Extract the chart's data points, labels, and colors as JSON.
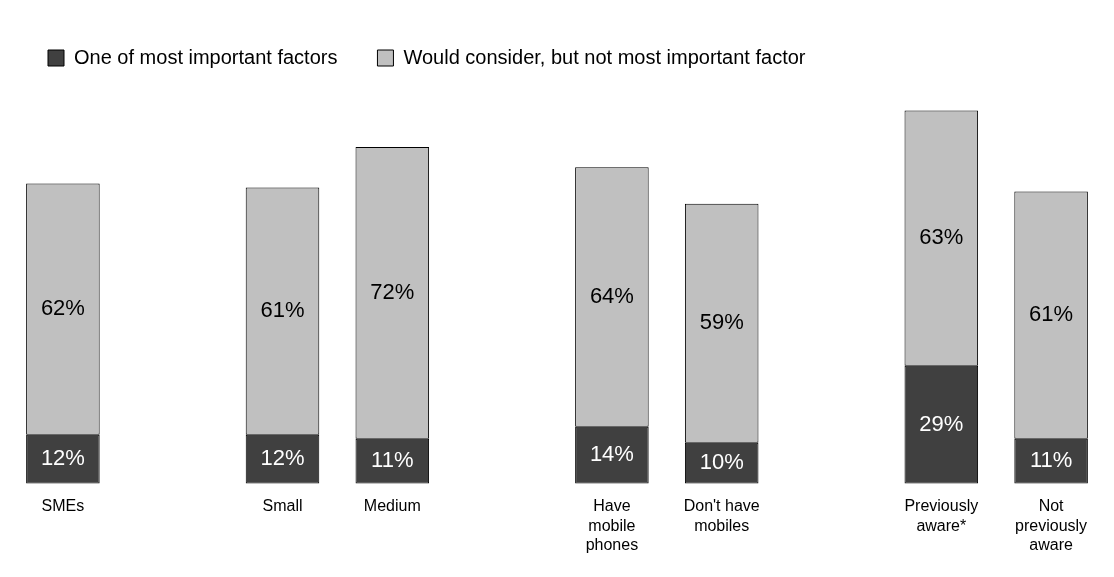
{
  "chart_data": {
    "type": "bar",
    "stacked": true,
    "legend": "top left",
    "grid": false,
    "categories": [
      "SMEs",
      null,
      "Small",
      "Medium",
      null,
      "Have mobile phones",
      "Don't have mobiles",
      null,
      "Previously aware*",
      "Not previously aware"
    ],
    "series": [
      {
        "name": "One of most important factors",
        "color": "#404040",
        "values": [
          12,
          null,
          12,
          11,
          null,
          14,
          10,
          null,
          29,
          11
        ],
        "value_labels": [
          "12%",
          null,
          "12%",
          "11%",
          null,
          "14%",
          "10%",
          null,
          "29%",
          "11%"
        ]
      },
      {
        "name": "Would consider, but not most important factor",
        "color": "#c0c0c0",
        "values": [
          62,
          null,
          61,
          72,
          null,
          64,
          59,
          null,
          63,
          61
        ],
        "value_labels": [
          "62%",
          null,
          "61%",
          "72%",
          null,
          "64%",
          "59%",
          null,
          "63%",
          "61%"
        ]
      }
    ]
  }
}
